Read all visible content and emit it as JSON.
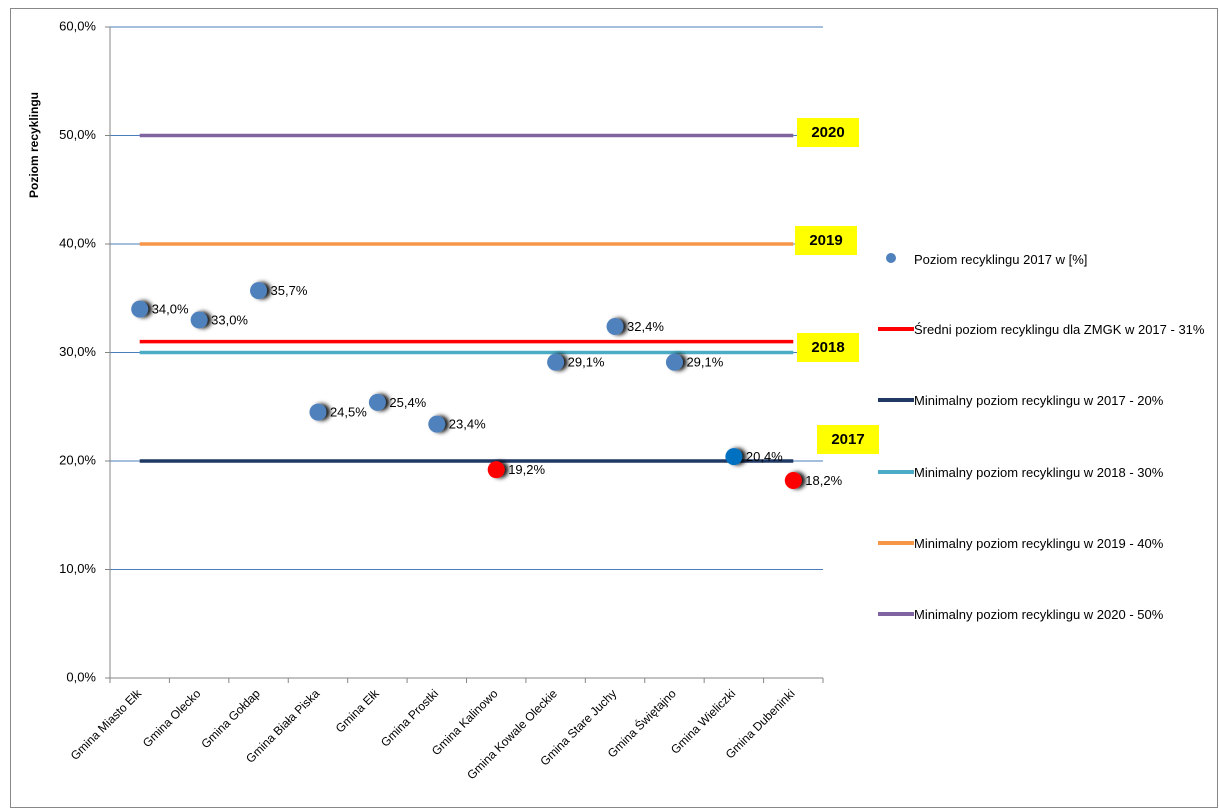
{
  "chart_data": {
    "type": "line",
    "y_label": "Poziom recyklingu",
    "categories": [
      "Gmina Miasto Ełk",
      "Gmina Olecko",
      "Gmina Gołdap",
      "Gmina Biała Piska",
      "Gmina Ełk",
      "Gmina Prostki",
      "Gmina Kalinowo",
      "Gmina Kowale Oleckie",
      "Gmina Stare Juchy",
      "Gmina Świętajno",
      "Gmina Wieliczki",
      "Gmina Dubeninki"
    ],
    "ylim": [
      0,
      60
    ],
    "yticks": [
      {
        "value": 0,
        "label": "0,0%"
      },
      {
        "value": 10,
        "label": "10,0%"
      },
      {
        "value": 20,
        "label": "20,0%"
      },
      {
        "value": 30,
        "label": "30,0%"
      },
      {
        "value": 40,
        "label": "40,0%"
      },
      {
        "value": 50,
        "label": "50,0%"
      },
      {
        "value": 60,
        "label": "60,0%"
      }
    ],
    "grid": true,
    "series": [
      {
        "name": "Poziom recyklingu 2017 w [%]",
        "color": "#4f81bd",
        "markers_only": true,
        "values": [
          34.0,
          33.0,
          35.7,
          24.5,
          25.4,
          23.4,
          19.2,
          29.1,
          32.4,
          29.1,
          20.4,
          18.2
        ],
        "value_labels": [
          "34,0%",
          "33,0%",
          "35,7%",
          "24,5%",
          "25,4%",
          "23,4%",
          "19,2%",
          "29,1%",
          "32,4%",
          "29,1%",
          "20,4%",
          "18,2%"
        ],
        "point_colors": [
          "#4f81bd",
          "#4f81bd",
          "#4f81bd",
          "#4f81bd",
          "#4f81bd",
          "#4f81bd",
          "#ff0000",
          "#4f81bd",
          "#4f81bd",
          "#4f81bd",
          "#0070c0",
          "#ff0000"
        ]
      },
      {
        "name": "Średni poziom recyklingu dla ZMGK w 2017 - 31%",
        "color": "#ff0000",
        "values": [
          31,
          31,
          31,
          31,
          31,
          31,
          31,
          31,
          31,
          31,
          31,
          31
        ]
      },
      {
        "name": "Minimalny poziom recyklingu w 2017 - 20%",
        "color": "#1f3864",
        "values": [
          20,
          20,
          20,
          20,
          20,
          20,
          20,
          20,
          20,
          20,
          20,
          20
        ]
      },
      {
        "name": "Minimalny poziom recyklingu w 2018 - 30%",
        "color": "#4bacc6",
        "values": [
          30,
          30,
          30,
          30,
          30,
          30,
          30,
          30,
          30,
          30,
          30,
          30
        ]
      },
      {
        "name": "Minimalny poziom recyklingu w 2019 - 40%",
        "color": "#f79646",
        "values": [
          40,
          40,
          40,
          40,
          40,
          40,
          40,
          40,
          40,
          40,
          40,
          40
        ]
      },
      {
        "name": "Minimalny poziom recyklingu w 2020 - 50%",
        "color": "#8064a2",
        "values": [
          50,
          50,
          50,
          50,
          50,
          50,
          50,
          50,
          50,
          50,
          50,
          50
        ]
      }
    ],
    "annotations": [
      "2020",
      "2019",
      "2018",
      "2017"
    ],
    "annotation_color": "#ffff00"
  }
}
